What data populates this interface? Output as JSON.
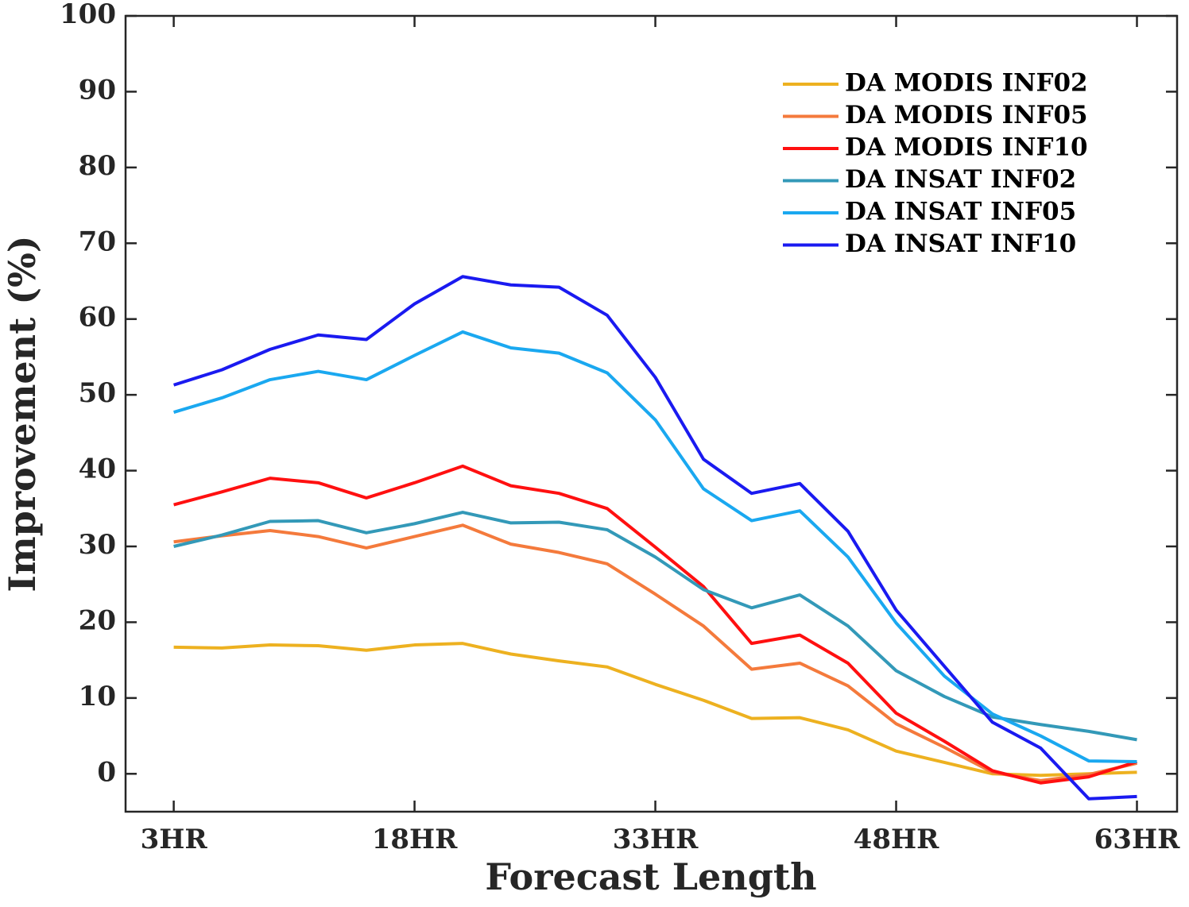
{
  "chart_data": {
    "type": "line",
    "x_label": "Forecast Length",
    "y_label": "Improvement (%)",
    "x": [
      3,
      6,
      9,
      12,
      15,
      18,
      21,
      24,
      27,
      30,
      33,
      36,
      39,
      42,
      45,
      48,
      51,
      54,
      57,
      60,
      63
    ],
    "series": [
      {
        "name": "DA MODIS INF02",
        "color": "#EDB120",
        "values": [
          16.7,
          16.6,
          17.0,
          16.9,
          16.3,
          17.0,
          17.2,
          15.8,
          14.9,
          14.1,
          11.8,
          9.7,
          7.3,
          7.4,
          5.8,
          3.0,
          1.5,
          0.0,
          -0.2,
          0.0,
          0.2
        ]
      },
      {
        "name": "DA MODIS INF05",
        "color": "#F47A3C",
        "values": [
          30.6,
          31.4,
          32.1,
          31.3,
          29.8,
          31.3,
          32.8,
          30.3,
          29.2,
          27.7,
          23.7,
          19.5,
          13.8,
          14.6,
          11.6,
          6.6,
          3.5,
          0.2,
          -0.9,
          -0.1,
          1.4
        ]
      },
      {
        "name": "DA MODIS INF10",
        "color": "#FF1010",
        "values": [
          35.5,
          37.2,
          39.0,
          38.4,
          36.4,
          38.4,
          40.6,
          38.0,
          37.0,
          35.0,
          29.9,
          24.7,
          17.2,
          18.3,
          14.6,
          8.0,
          4.3,
          0.4,
          -1.2,
          -0.4,
          1.6
        ]
      },
      {
        "name": "DA INSAT INF02",
        "color": "#3399B8",
        "values": [
          30.0,
          31.5,
          33.3,
          33.4,
          31.8,
          33.0,
          34.5,
          33.1,
          33.2,
          32.2,
          28.6,
          24.3,
          21.9,
          23.6,
          19.5,
          13.6,
          10.2,
          7.5,
          6.5,
          5.6,
          4.5
        ]
      },
      {
        "name": "DA INSAT INF05",
        "color": "#1AA8F0",
        "values": [
          47.7,
          49.6,
          52.0,
          53.1,
          52.0,
          55.2,
          58.3,
          56.2,
          55.5,
          52.9,
          46.7,
          37.6,
          33.4,
          34.7,
          28.6,
          19.9,
          12.9,
          7.9,
          5.0,
          1.7,
          1.6
        ]
      },
      {
        "name": "DA INSAT INF10",
        "color": "#1A1AF0",
        "values": [
          51.3,
          53.3,
          56.0,
          57.9,
          57.3,
          62.0,
          65.6,
          64.5,
          64.2,
          60.5,
          52.3,
          41.5,
          37.0,
          38.3,
          32.0,
          21.6,
          14.2,
          6.8,
          3.4,
          -3.3,
          -3.0
        ]
      }
    ],
    "xlim": [
      0,
      65.5
    ],
    "ylim": [
      -5,
      100
    ],
    "xticks": [
      {
        "value": 3,
        "label": "3HR"
      },
      {
        "value": 18,
        "label": "18HR"
      },
      {
        "value": 33,
        "label": "33HR"
      },
      {
        "value": 48,
        "label": "48HR"
      },
      {
        "value": 63,
        "label": "63HR"
      }
    ],
    "yticks": [
      0,
      10,
      20,
      30,
      40,
      50,
      60,
      70,
      80,
      90,
      100
    ],
    "legend": "upper right"
  }
}
